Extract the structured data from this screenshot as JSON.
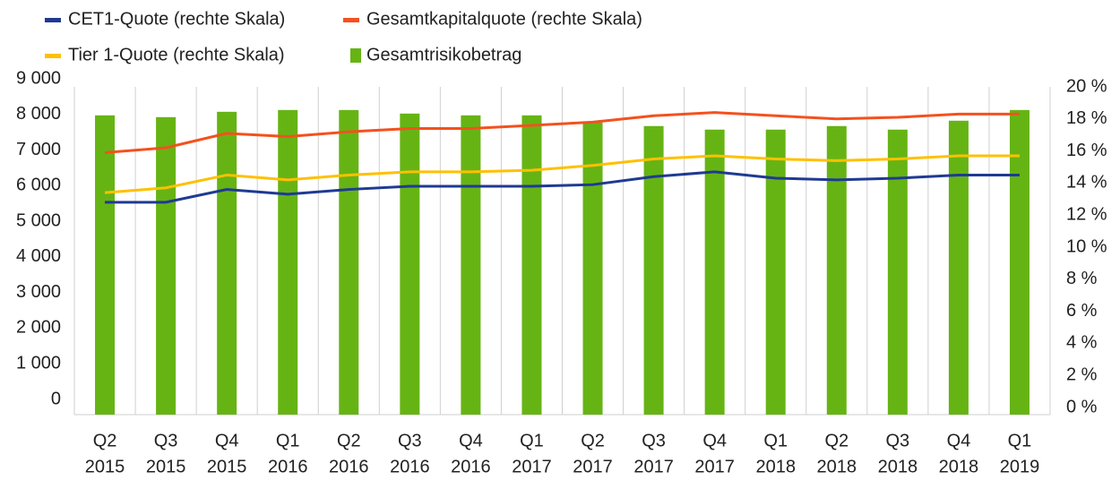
{
  "chart_data": {
    "type": "combo",
    "categories": [
      [
        "Q2",
        "2015"
      ],
      [
        "Q3",
        "2015"
      ],
      [
        "Q4",
        "2015"
      ],
      [
        "Q1",
        "2016"
      ],
      [
        "Q2",
        "2016"
      ],
      [
        "Q3",
        "2016"
      ],
      [
        "Q4",
        "2016"
      ],
      [
        "Q1",
        "2017"
      ],
      [
        "Q2",
        "2017"
      ],
      [
        "Q3",
        "2017"
      ],
      [
        "Q4",
        "2017"
      ],
      [
        "Q1",
        "2018"
      ],
      [
        "Q2",
        "2018"
      ],
      [
        "Q3",
        "2018"
      ],
      [
        "Q4",
        "2018"
      ],
      [
        "Q1",
        "2019"
      ]
    ],
    "series": [
      {
        "name": "CET1-Quote (rechte Skala)",
        "type": "line",
        "axis": "y2",
        "color": "#1f3a93",
        "values": [
          12.8,
          12.8,
          13.6,
          13.3,
          13.6,
          13.8,
          13.8,
          13.8,
          13.9,
          14.4,
          14.7,
          14.3,
          14.2,
          14.3,
          14.5,
          14.5
        ]
      },
      {
        "name": "Gesamtkapitalquote (rechte Skala)",
        "type": "line",
        "axis": "y2",
        "color": "#f4511e",
        "values": [
          15.9,
          16.2,
          17.1,
          16.9,
          17.2,
          17.4,
          17.4,
          17.6,
          17.8,
          18.2,
          18.4,
          18.2,
          18.0,
          18.1,
          18.3,
          18.3
        ]
      },
      {
        "name": "Tier 1-Quote (rechte Skala)",
        "type": "line",
        "axis": "y2",
        "color": "#ffc000",
        "values": [
          13.4,
          13.7,
          14.5,
          14.2,
          14.5,
          14.7,
          14.7,
          14.8,
          15.1,
          15.5,
          15.7,
          15.5,
          15.4,
          15.5,
          15.7,
          15.7
        ]
      },
      {
        "name": "Gesamtrisikobetrag",
        "type": "bar",
        "color": "#66b414",
        "values": [
          8200,
          8150,
          8300,
          8350,
          8350,
          8250,
          8200,
          8200,
          8000,
          7900,
          7800,
          7800,
          7900,
          7800,
          8050,
          8350
        ]
      }
    ],
    "ylim": [
      0,
      9000
    ],
    "yticks": [
      0,
      {
        "value": 1000,
        "label": "1 000"
      },
      {
        "value": 2000,
        "label": "2 000"
      },
      {
        "value": 3000,
        "label": "3 000"
      },
      {
        "value": 4000,
        "label": "4 000"
      },
      {
        "value": 5000,
        "label": "5 000"
      },
      {
        "value": 6000,
        "label": "6 000"
      },
      {
        "value": 7000,
        "label": "7 000"
      },
      {
        "value": 8000,
        "label": "8 000"
      },
      {
        "value": 9000,
        "label": "9 000"
      }
    ],
    "y2lim": [
      0,
      20
    ],
    "y2ticks": [
      {
        "value": 0,
        "label": "0 %"
      },
      {
        "value": 2,
        "label": "2 %"
      },
      {
        "value": 4,
        "label": "4 %"
      },
      {
        "value": 6,
        "label": "6 %"
      },
      {
        "value": 8,
        "label": "8 %"
      },
      {
        "value": 10,
        "label": "10 %"
      },
      {
        "value": 12,
        "label": "12 %"
      },
      {
        "value": 14,
        "label": "14 %"
      },
      {
        "value": 16,
        "label": "16 %"
      },
      {
        "value": 18,
        "label": "18 %"
      },
      {
        "value": 20,
        "label": "20 %"
      }
    ],
    "grid": "vertical",
    "legend": "top-left"
  }
}
